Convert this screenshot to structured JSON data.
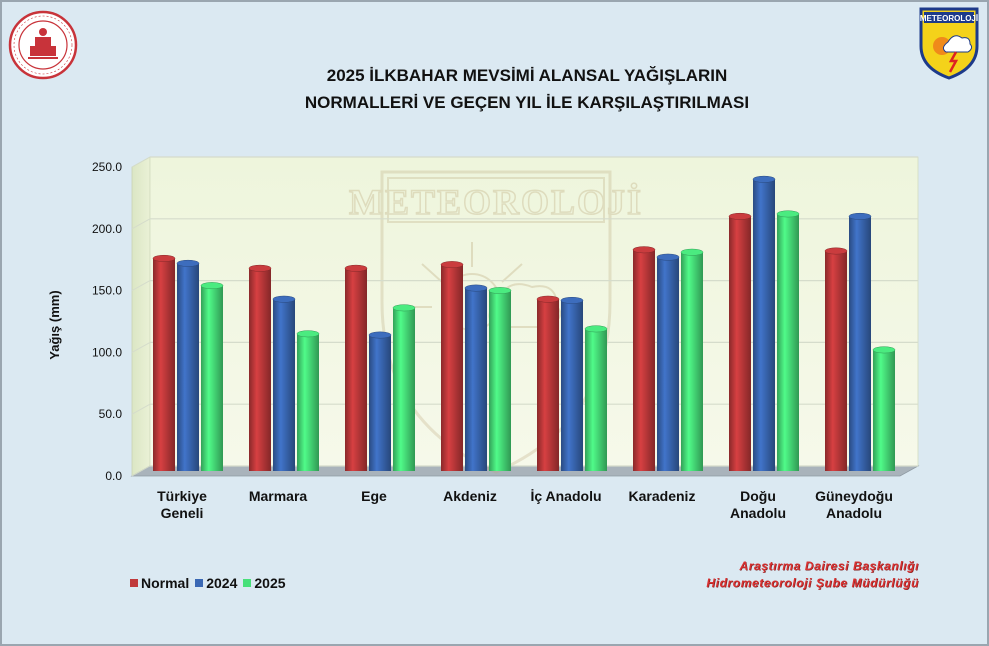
{
  "title_lines": [
    "2025 İLKBAHAR MEVSİMİ ALANSAL YAĞIŞLARIN",
    "NORMALLERİ VE GEÇEN YIL İLE KARŞILAŞTIRILMASI"
  ],
  "credit_lines": [
    "Araştırma Dairesi Başkanlığı",
    "Hidrometeoroloji Şube Müdürlüğü"
  ],
  "logo_right_text": "METEOROLOJİ",
  "watermark_text": "METEOROLOJİ",
  "chart_data": {
    "type": "bar",
    "title": "2025 İLKBAHAR MEVSİMİ ALANSAL YAĞIŞLARIN NORMALLERİ VE GEÇEN YIL İLE KARŞILAŞTIRILMASI",
    "ylabel": "Yağış (mm)",
    "xlabel": "",
    "ylim": [
      0,
      250
    ],
    "yticks": [
      "0.0",
      "50.0",
      "100.0",
      "150.0",
      "200.0",
      "250.0"
    ],
    "categories": [
      [
        "Türkiye",
        "Geneli"
      ],
      [
        "Marmara"
      ],
      [
        "Ege"
      ],
      [
        "Akdeniz"
      ],
      [
        "İç Anadolu"
      ],
      [
        "Karadeniz"
      ],
      [
        "Doğu",
        "Anadolu"
      ],
      [
        "Güneydoğu",
        "Anadolu"
      ]
    ],
    "series": [
      {
        "name": "Normal",
        "color": "#c0393b",
        "values": [
          172,
          164,
          164,
          167,
          139,
          179,
          206,
          178
        ]
      },
      {
        "name": "2024",
        "color": "#3a68b4",
        "values": [
          168,
          139,
          110,
          148,
          138,
          173,
          236,
          206
        ]
      },
      {
        "name": "2025",
        "color": "#47e07a",
        "values": [
          150,
          111,
          132,
          146,
          115,
          177,
          208,
          98
        ]
      }
    ],
    "grid": true,
    "legend": "bottom-left"
  }
}
